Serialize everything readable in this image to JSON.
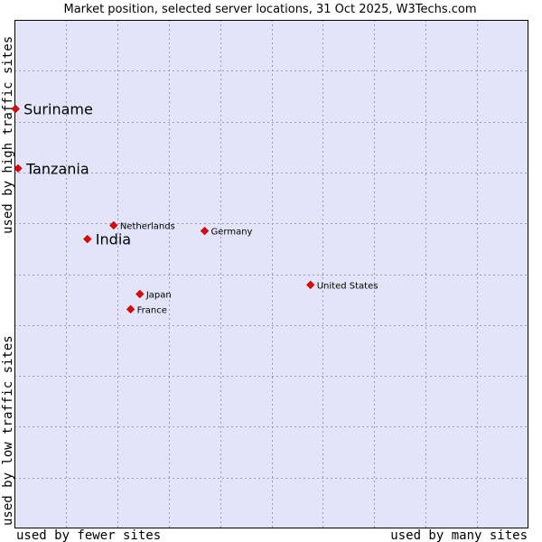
{
  "chart_data": {
    "type": "scatter",
    "title": "Market position, selected server locations, 31 Oct 2025, W3Techs.com",
    "xlabel_left": "used by fewer sites",
    "xlabel_right": "used by many sites",
    "ylabel_bottom": "used by low traffic sites",
    "ylabel_top": "used by high traffic sites",
    "xlim": [
      0,
      100
    ],
    "ylim": [
      0,
      100
    ],
    "grid": true,
    "colors": {
      "plot_background": "#e4e4f8",
      "grid": "#9a9ab8",
      "border": "#000000",
      "marker": "#ee0000"
    },
    "points": [
      {
        "name": "Suriname",
        "x": 0.2,
        "y": 82.5,
        "emphasis": true
      },
      {
        "name": "Tanzania",
        "x": 0.7,
        "y": 70.8,
        "emphasis": true
      },
      {
        "name": "Netherlands",
        "x": 19.3,
        "y": 59.6,
        "emphasis": false
      },
      {
        "name": "India",
        "x": 14.2,
        "y": 56.9,
        "emphasis": true
      },
      {
        "name": "Germany",
        "x": 37.0,
        "y": 58.5,
        "emphasis": false
      },
      {
        "name": "United States",
        "x": 57.6,
        "y": 47.9,
        "emphasis": false
      },
      {
        "name": "Japan",
        "x": 24.4,
        "y": 46.1,
        "emphasis": false
      },
      {
        "name": "France",
        "x": 22.6,
        "y": 43.1,
        "emphasis": false
      }
    ]
  }
}
